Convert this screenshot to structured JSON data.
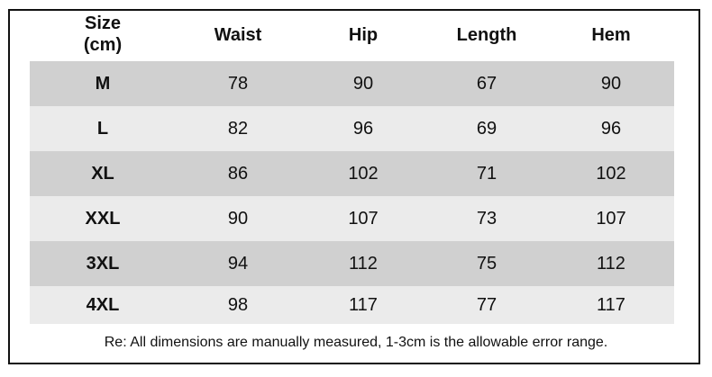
{
  "table": {
    "header": [
      "Size\n(cm)",
      "Waist",
      "Hip",
      "Length",
      "Hem"
    ],
    "rows": [
      [
        "M",
        78,
        90,
        67,
        90
      ],
      [
        "L",
        82,
        96,
        69,
        96
      ],
      [
        "XL",
        86,
        102,
        71,
        102
      ],
      [
        "XXL",
        90,
        107,
        73,
        107
      ],
      [
        "3XL",
        94,
        112,
        75,
        112
      ],
      [
        "4XL",
        98,
        117,
        77,
        117
      ]
    ]
  },
  "footer": "Re: All dimensions are manually measured, 1-3cm is the allowable error range."
}
